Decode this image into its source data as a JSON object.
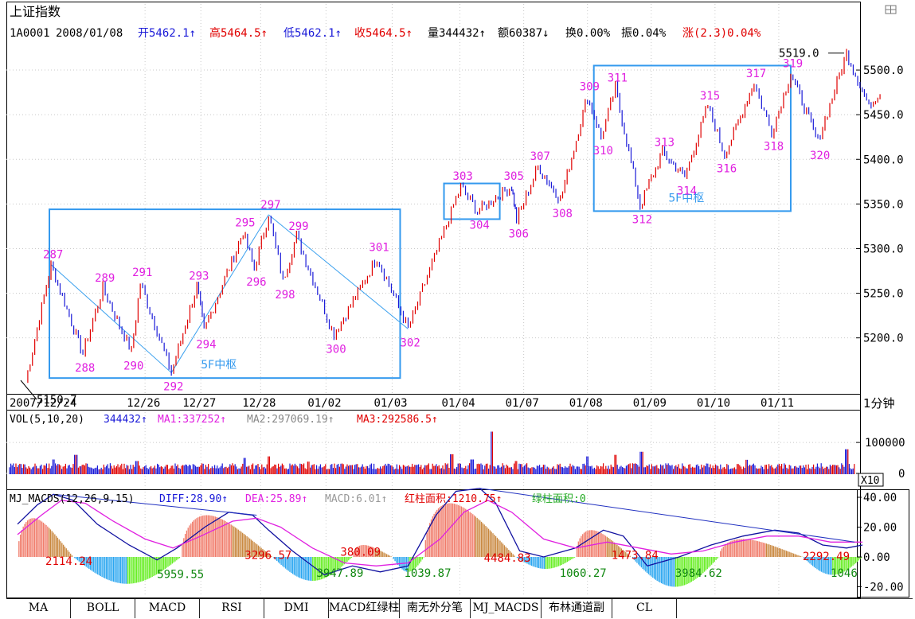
{
  "header": {
    "title": "上证指数",
    "code": "1A0001",
    "date": "2008/01/08",
    "open": "开5462.1↑",
    "high": "高5464.5↑",
    "low": "低5462.1↑",
    "close": "收5464.5↑",
    "volume": "量344432↑",
    "amount": "额60387↓",
    "turnover": "换0.00%",
    "amplitude": "振0.04%",
    "change": "涨(2.3)0.04%"
  },
  "period_label": "1分钟",
  "colors": {
    "up": "#e00000",
    "down": "#1a1ad8",
    "boxes": "#3399ee",
    "label": "#e020e0",
    "macd_pos": "#c8863c",
    "macd_neg": "#2aa6f0",
    "macd_green": "#66ee22"
  },
  "chart_data": [
    {
      "type": "candlestick",
      "xlabels": [
        "2007/12/24",
        "12/26",
        "12/27",
        "12/28",
        "01/02",
        "01/03",
        "01/04",
        "01/07",
        "01/08",
        "01/09",
        "01/10",
        "01/11"
      ],
      "ylim": [
        5140,
        5525
      ],
      "yticks": [
        "5500.0",
        "5450.0",
        "5400.0",
        "5350.0",
        "5300.0",
        "5250.0",
        "5200.0"
      ],
      "yvals": [
        5500,
        5450,
        5400,
        5350,
        5300,
        5250,
        5200
      ],
      "low_marker": "5150.7",
      "high_marker": "5519.0",
      "waves": [
        {
          "id": "287",
          "t": 0.027,
          "v": 5282
        },
        {
          "id": "288",
          "t": 0.067,
          "v": 5182
        },
        {
          "id": "289",
          "t": 0.092,
          "v": 5256
        },
        {
          "id": "290",
          "t": 0.128,
          "v": 5184
        },
        {
          "id": "291",
          "t": 0.139,
          "v": 5262
        },
        {
          "id": "292",
          "t": 0.178,
          "v": 5161
        },
        {
          "id": "293",
          "t": 0.21,
          "v": 5258
        },
        {
          "id": "294",
          "t": 0.219,
          "v": 5208
        },
        {
          "id": "295",
          "t": 0.268,
          "v": 5318
        },
        {
          "id": "296",
          "t": 0.282,
          "v": 5278
        },
        {
          "id": "297",
          "t": 0.3,
          "v": 5338
        },
        {
          "id": "298",
          "t": 0.318,
          "v": 5264
        },
        {
          "id": "299",
          "t": 0.335,
          "v": 5314
        },
        {
          "id": "300",
          "t": 0.382,
          "v": 5203
        },
        {
          "id": "301",
          "t": 0.436,
          "v": 5290
        },
        {
          "id": "302",
          "t": 0.475,
          "v": 5210
        },
        {
          "id": "303",
          "t": 0.541,
          "v": 5370
        },
        {
          "id": "304",
          "t": 0.562,
          "v": 5342
        },
        {
          "id": "305",
          "t": 0.605,
          "v": 5370
        },
        {
          "id": "306",
          "t": 0.611,
          "v": 5332
        },
        {
          "id": "307",
          "t": 0.638,
          "v": 5392
        },
        {
          "id": "308",
          "t": 0.666,
          "v": 5355
        },
        {
          "id": "309",
          "t": 0.7,
          "v": 5470
        },
        {
          "id": "310",
          "t": 0.717,
          "v": 5425
        },
        {
          "id": "311",
          "t": 0.735,
          "v": 5480
        },
        {
          "id": "312",
          "t": 0.766,
          "v": 5348
        },
        {
          "id": "313",
          "t": 0.794,
          "v": 5408
        },
        {
          "id": "314",
          "t": 0.822,
          "v": 5380
        },
        {
          "id": "315",
          "t": 0.851,
          "v": 5460
        },
        {
          "id": "316",
          "t": 0.872,
          "v": 5405
        },
        {
          "id": "317",
          "t": 0.909,
          "v": 5485
        },
        {
          "id": "318",
          "t": 0.931,
          "v": 5430
        },
        {
          "id": "319",
          "t": 0.955,
          "v": 5496
        },
        {
          "id": "320",
          "t": 0.989,
          "v": 5420
        },
        {
          "id": "end1",
          "t": 1.025,
          "v": 5519
        },
        {
          "id": "end2",
          "t": 1.053,
          "v": 5460
        },
        {
          "id": "end3",
          "t": 1.067,
          "v": 5473
        }
      ],
      "visible_wave_labels": [
        "287",
        "288",
        "289",
        "290",
        "291",
        "292",
        "293",
        "294",
        "295",
        "296",
        "297",
        "298",
        "299",
        "300",
        "301",
        "302",
        "303",
        "304",
        "305",
        "306",
        "307",
        "308",
        "309",
        "310",
        "311",
        "312",
        "313",
        "314",
        "315",
        "316",
        "317",
        "318",
        "319",
        "320"
      ],
      "trend_lines": [
        {
          "from": [
            0.027,
            5282
          ],
          "to": [
            0.178,
            5161
          ]
        },
        {
          "from": [
            0.178,
            5161
          ],
          "to": [
            0.3,
            5338
          ]
        },
        {
          "from": [
            0.3,
            5338
          ],
          "to": [
            0.475,
            5210
          ]
        }
      ],
      "boxes": [
        {
          "label": "5F中枢",
          "t0": 0.025,
          "t1": 0.465,
          "v0": 5155,
          "v1": 5344
        },
        {
          "label": "",
          "t0": 0.52,
          "t1": 0.59,
          "v0": 5333,
          "v1": 5373
        },
        {
          "label": "5F中枢",
          "t0": 0.708,
          "t1": 0.955,
          "v0": 5342,
          "v1": 5505
        }
      ]
    },
    {
      "type": "bar",
      "legend": {
        "name": "VOL(5,10,20)",
        "value": "344432↑",
        "ma1": "MA1:337252↑",
        "ma2": "MA2:297069.19↑",
        "ma3": "MA3:292586.5↑"
      },
      "yticks": [
        "100000",
        "0"
      ],
      "yvals": [
        100000,
        0
      ],
      "ylim": [
        0,
        180000
      ],
      "multiplier": "X10",
      "base_level": 22000,
      "spikes": [
        {
          "t": 0.03,
          "v": 45000
        },
        {
          "t": 0.058,
          "v": 60000
        },
        {
          "t": 0.135,
          "v": 40000
        },
        {
          "t": 0.27,
          "v": 50000
        },
        {
          "t": 0.3,
          "v": 55000
        },
        {
          "t": 0.35,
          "v": 38000
        },
        {
          "t": 0.53,
          "v": 62000
        },
        {
          "t": 0.555,
          "v": 45000
        },
        {
          "t": 0.58,
          "v": 135000
        },
        {
          "t": 0.61,
          "v": 40000
        },
        {
          "t": 0.7,
          "v": 55000
        },
        {
          "t": 0.735,
          "v": 60000
        },
        {
          "t": 0.768,
          "v": 70000
        },
        {
          "t": 0.9,
          "v": 44000
        },
        {
          "t": 1.025,
          "v": 78000
        }
      ]
    },
    {
      "type": "macd",
      "legend": {
        "name": "MJ_MACDS(12,26,9,15)",
        "diff": "DIFF:28.90↑",
        "dea": "DEA:25.89↑",
        "macd": "MACD:6.01↑",
        "red_area": "红柱面积:1210.75↑",
        "green_area": "绿柱面积:0"
      },
      "yticks": [
        "40.00",
        "20.00",
        "0.00",
        "-20.00"
      ],
      "yvals": [
        40,
        20,
        0,
        -20
      ],
      "ylim": [
        -30,
        50
      ],
      "area_labels": [
        {
          "text": "2114.24",
          "t": 0.06,
          "v": -2,
          "color": "red"
        },
        {
          "text": "5959.55",
          "t": 0.2,
          "v": -11,
          "color": "green"
        },
        {
          "text": "3296.57",
          "t": 0.31,
          "v": 2,
          "color": "red"
        },
        {
          "text": "3947.89",
          "t": 0.4,
          "v": -10,
          "color": "green"
        },
        {
          "text": "380.09",
          "t": 0.43,
          "v": 4,
          "color": "red"
        },
        {
          "text": "1039.87",
          "t": 0.51,
          "v": -10,
          "color": "green"
        },
        {
          "text": "4484.83",
          "t": 0.61,
          "v": 0,
          "color": "red"
        },
        {
          "text": "1060.27",
          "t": 0.705,
          "v": -10,
          "color": "green"
        },
        {
          "text": "1473.84",
          "t": 0.77,
          "v": 2,
          "color": "red"
        },
        {
          "text": "3984.62",
          "t": 0.85,
          "v": -10,
          "color": "green"
        },
        {
          "text": "2292.49",
          "t": 1.01,
          "v": 1,
          "color": "red"
        },
        {
          "text": "1046",
          "t": 1.045,
          "v": -10,
          "color": "green"
        }
      ]
    }
  ],
  "tabs": [
    "MA",
    "BOLL",
    "MACD",
    "RSI",
    "DMI",
    "MACD红绿柱",
    "南无外分笔",
    "MJ_MACDS",
    "布林通道副",
    "CL"
  ]
}
